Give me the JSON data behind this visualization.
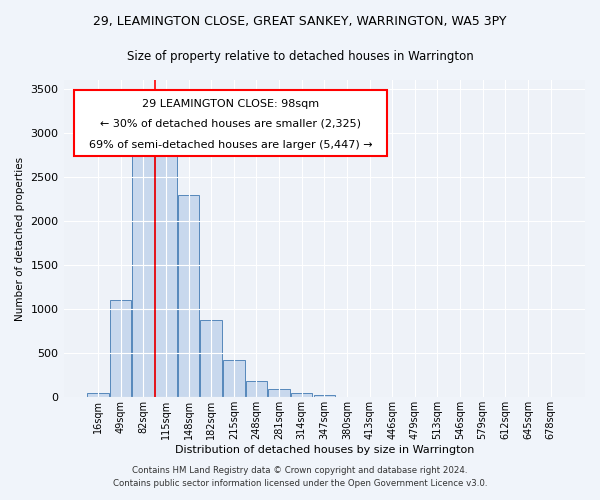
{
  "title_line1": "29, LEAMINGTON CLOSE, GREAT SANKEY, WARRINGTON, WA5 3PY",
  "title_line2": "Size of property relative to detached houses in Warrington",
  "xlabel": "Distribution of detached houses by size in Warrington",
  "ylabel": "Number of detached properties",
  "bar_labels": [
    "16sqm",
    "49sqm",
    "82sqm",
    "115sqm",
    "148sqm",
    "182sqm",
    "215sqm",
    "248sqm",
    "281sqm",
    "314sqm",
    "347sqm",
    "380sqm",
    "413sqm",
    "446sqm",
    "479sqm",
    "513sqm",
    "546sqm",
    "579sqm",
    "612sqm",
    "645sqm",
    "678sqm"
  ],
  "bar_values": [
    50,
    1100,
    2750,
    2750,
    2300,
    880,
    420,
    180,
    90,
    50,
    30,
    5,
    2,
    1,
    0,
    0,
    0,
    0,
    0,
    0,
    0
  ],
  "bar_color": "#c8d8ed",
  "bar_edge_color": "#5588bb",
  "ylim": [
    0,
    3600
  ],
  "yticks": [
    0,
    500,
    1000,
    1500,
    2000,
    2500,
    3000,
    3500
  ],
  "red_line_x": 2.5,
  "annotation_text_line1": "29 LEAMINGTON CLOSE: 98sqm",
  "annotation_text_line2": "← 30% of detached houses are smaller (2,325)",
  "annotation_text_line3": "69% of semi-detached houses are larger (5,447) →",
  "footer_line1": "Contains HM Land Registry data © Crown copyright and database right 2024.",
  "footer_line2": "Contains public sector information licensed under the Open Government Licence v3.0.",
  "bg_color": "#f0f4fa",
  "plot_bg_color": "#eef2f8",
  "grid_color": "#ffffff"
}
